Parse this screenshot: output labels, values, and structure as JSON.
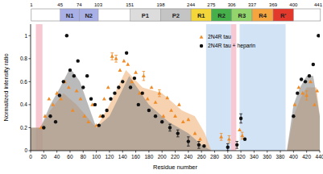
{
  "chart_data": {
    "type": "scatter",
    "x_label": "Residue number",
    "y_label": "Normalized intensity ratio",
    "xlim": [
      0,
      440
    ],
    "ylim": [
      0,
      1.1
    ],
    "xticks": [
      0,
      20,
      40,
      60,
      80,
      100,
      120,
      140,
      160,
      180,
      200,
      220,
      240,
      260,
      280,
      300,
      320,
      340,
      360,
      380,
      400,
      420,
      440
    ],
    "yticks": [
      0,
      0.2,
      0.4,
      0.6,
      0.8,
      1.0
    ],
    "x2ticks": [
      1,
      45,
      74,
      103,
      151,
      198,
      244,
      275,
      306,
      337,
      369,
      400,
      441
    ],
    "legend": "upper right",
    "domains": [
      {
        "label": "N1",
        "start": 45,
        "end": 74,
        "color": "#a9b0e6"
      },
      {
        "label": "N2",
        "start": 74,
        "end": 103,
        "color": "#a9b0e6"
      },
      {
        "label": "P1",
        "start": 151,
        "end": 198,
        "color": "#dcdcdc"
      },
      {
        "label": "P2",
        "start": 198,
        "end": 244,
        "color": "#c4c4c4"
      },
      {
        "label": "R1",
        "start": 244,
        "end": 275,
        "color": "#f3d63a"
      },
      {
        "label": "R2",
        "start": 275,
        "end": 306,
        "color": "#45b049"
      },
      {
        "label": "R3",
        "start": 306,
        "end": 337,
        "color": "#93d56c"
      },
      {
        "label": "R4",
        "start": 337,
        "end": 369,
        "color": "#f5a540"
      },
      {
        "label": "R'",
        "start": 369,
        "end": 400,
        "color": "#e2392c"
      }
    ],
    "bands": [
      {
        "start": 8,
        "end": 18,
        "color": "#f7c8d2"
      },
      {
        "start": 267,
        "end": 305,
        "color": "#d3e3f6"
      },
      {
        "start": 305,
        "end": 313,
        "color": "#f7c8d2"
      },
      {
        "start": 318,
        "end": 388,
        "color": "#d3e3f6"
      }
    ],
    "areas": [
      {
        "color": "#f2b47c",
        "x": [
          0,
          15,
          30,
          50,
          70,
          100,
          120,
          145,
          170,
          200,
          230,
          250,
          265,
          275,
          390,
          400,
          410,
          420,
          435,
          440
        ],
        "values": [
          0.2,
          0.2,
          0.35,
          0.5,
          0.4,
          0.2,
          0.4,
          0.7,
          0.55,
          0.5,
          0.35,
          0.3,
          0.15,
          0,
          0,
          0.3,
          0.45,
          0.55,
          0.55,
          0.3
        ]
      },
      {
        "color": "#8c8c8c",
        "x": [
          0,
          15,
          30,
          45,
          60,
          75,
          100,
          120,
          150,
          180,
          210,
          240,
          260,
          275,
          390,
          400,
          410,
          420,
          430,
          440
        ],
        "values": [
          0.2,
          0.2,
          0.4,
          0.55,
          0.72,
          0.6,
          0.2,
          0.3,
          0.65,
          0.4,
          0.25,
          0.15,
          0.05,
          0,
          0,
          0.4,
          0.55,
          0.65,
          0.65,
          0.3
        ]
      }
    ],
    "series": [
      {
        "name": "2N4R tau",
        "color": "#f08a24",
        "marker": "triangle",
        "x": [
          16,
          22,
          28,
          34,
          40,
          46,
          52,
          58,
          64,
          70,
          76,
          82,
          88,
          94,
          100,
          106,
          112,
          118,
          124,
          130,
          136,
          142,
          148,
          154,
          160,
          166,
          172,
          178,
          184,
          190,
          196,
          202,
          208,
          214,
          220,
          226,
          232,
          240,
          250,
          258,
          290,
          302,
          318,
          322,
          402,
          408,
          414,
          420,
          426,
          432,
          436
        ],
        "values": [
          0.2,
          0.3,
          0.45,
          0.4,
          0.5,
          0.45,
          0.6,
          0.55,
          0.35,
          0.52,
          0.45,
          0.3,
          0.25,
          0.4,
          0.22,
          0.3,
          0.45,
          0.55,
          0.82,
          0.8,
          0.7,
          0.78,
          0.75,
          0.6,
          0.68,
          0.5,
          0.65,
          0.45,
          0.55,
          0.42,
          0.5,
          0.3,
          0.46,
          0.35,
          0.3,
          0.4,
          0.25,
          0.27,
          0.15,
          0.1,
          0.12,
          0.1,
          0.18,
          0.13,
          0.4,
          0.55,
          0.5,
          0.48,
          0.6,
          0.4,
          0.52
        ],
        "errors": [
          null,
          null,
          null,
          null,
          null,
          null,
          null,
          null,
          null,
          null,
          null,
          null,
          null,
          null,
          null,
          null,
          null,
          null,
          0.03,
          0.03,
          null,
          null,
          null,
          null,
          null,
          null,
          0.04,
          null,
          null,
          null,
          0.03,
          null,
          null,
          null,
          null,
          null,
          null,
          null,
          null,
          null,
          0.03,
          0.03,
          null,
          0.03,
          null,
          null,
          null,
          0.04,
          null,
          null,
          null
        ]
      },
      {
        "name": "2N4R tau + heparin",
        "color": "#111111",
        "marker": "circle",
        "x": [
          20,
          30,
          38,
          44,
          50,
          55,
          60,
          66,
          72,
          80,
          86,
          92,
          98,
          104,
          110,
          116,
          122,
          128,
          134,
          140,
          146,
          152,
          158,
          164,
          170,
          180,
          190,
          200,
          212,
          224,
          240,
          256,
          264,
          300,
          314,
          320,
          326,
          400,
          406,
          412,
          418,
          424,
          430,
          438
        ],
        "values": [
          0.2,
          0.3,
          0.25,
          0.48,
          0.6,
          1.0,
          0.7,
          0.65,
          0.78,
          0.55,
          0.65,
          0.45,
          0.4,
          0.22,
          0.3,
          0.35,
          0.45,
          0.5,
          0.55,
          0.6,
          0.85,
          0.55,
          0.63,
          0.4,
          0.5,
          0.35,
          0.3,
          0.25,
          0.2,
          0.15,
          0.08,
          0.05,
          0.04,
          0.03,
          0.05,
          0.28,
          0.1,
          0.3,
          0.5,
          0.62,
          0.6,
          0.65,
          0.75,
          1.0
        ],
        "errors": [
          null,
          null,
          null,
          null,
          null,
          null,
          null,
          null,
          null,
          null,
          null,
          null,
          null,
          null,
          null,
          null,
          null,
          null,
          null,
          null,
          null,
          null,
          null,
          null,
          null,
          null,
          null,
          null,
          0.03,
          0.03,
          0.04,
          0.03,
          null,
          0.03,
          0.03,
          0.04,
          null,
          null,
          null,
          null,
          null,
          null,
          null,
          null
        ]
      }
    ]
  }
}
